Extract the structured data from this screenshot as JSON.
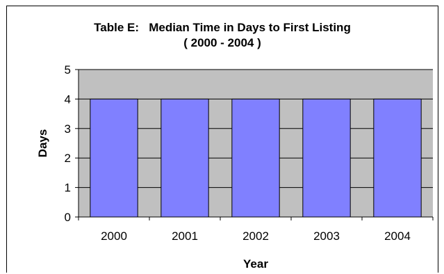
{
  "chart_data": {
    "type": "bar",
    "title": "Table E:   Median Time in Days to First Listing",
    "subtitle": "( 2000 - 2004 )",
    "categories": [
      "2000",
      "2001",
      "2002",
      "2003",
      "2004"
    ],
    "values": [
      4,
      4,
      4,
      4,
      4
    ],
    "xlabel": "Year",
    "ylabel": "Days",
    "ylim": [
      0,
      5
    ],
    "yticks": [
      0,
      1,
      2,
      3,
      4,
      5
    ],
    "grid": true,
    "colors": {
      "bar": "#8080ff",
      "plot_background": "#c0c0c0",
      "gridline": "#000000"
    }
  }
}
